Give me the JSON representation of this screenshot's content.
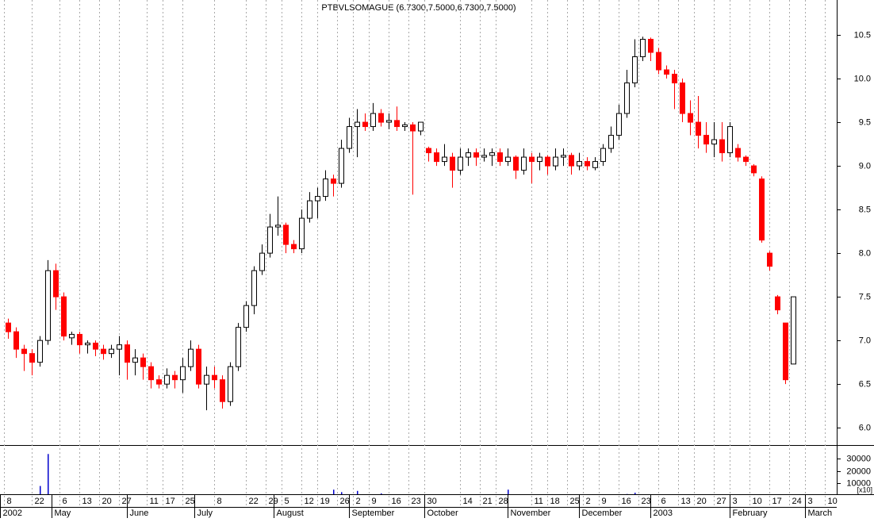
{
  "chart_data": {
    "type": "candlestick",
    "title": "PTBVLSOMAGUE (6.7300,7.5000,6.7300,7.5000)",
    "up_color": "#000000",
    "down_color": "#ff0000",
    "xlim": [
      0,
      211
    ],
    "ylim": [
      5.82,
      10.9
    ],
    "yticks": [
      {
        "value": 6,
        "label": "6.0"
      },
      6.5,
      {
        "value": 7,
        "label": "7.0"
      },
      7.5,
      {
        "value": 8,
        "label": "8.0"
      },
      8.5,
      {
        "value": 9,
        "label": "9.0"
      },
      9.5,
      {
        "value": 10,
        "label": "10.0"
      },
      10.5
    ],
    "xticks": [
      {
        "value": 1,
        "label": "8"
      },
      {
        "value": 8,
        "label": "22"
      },
      {
        "value": 15,
        "label": "6"
      },
      {
        "value": 20,
        "label": "13"
      },
      {
        "value": 25,
        "label": "20"
      },
      {
        "value": 30,
        "label": "27"
      },
      {
        "value": 37,
        "label": "11"
      },
      {
        "value": 41,
        "label": "17"
      },
      {
        "value": 46,
        "label": "25"
      },
      {
        "value": 54,
        "label": "8"
      },
      {
        "value": 62,
        "label": "22"
      },
      {
        "value": 67,
        "label": "29"
      },
      {
        "value": 71,
        "label": "5"
      },
      {
        "value": 76,
        "label": "12"
      },
      {
        "value": 80,
        "label": "19"
      },
      {
        "value": 85,
        "label": "26"
      },
      {
        "value": 89,
        "label": "2"
      },
      {
        "value": 93,
        "label": "9"
      },
      {
        "value": 98,
        "label": "16"
      },
      {
        "value": 103,
        "label": "23"
      },
      {
        "value": 107,
        "label": "30"
      },
      {
        "value": 116,
        "label": "14"
      },
      {
        "value": 121,
        "label": "21"
      },
      {
        "value": 125,
        "label": "28"
      },
      {
        "value": 134,
        "label": "11"
      },
      {
        "value": 138,
        "label": "18"
      },
      {
        "value": 143,
        "label": "25"
      },
      {
        "value": 147,
        "label": "2"
      },
      {
        "value": 151,
        "label": "9"
      },
      {
        "value": 156,
        "label": "16"
      },
      {
        "value": 161,
        "label": "23"
      },
      {
        "value": 166,
        "label": "6"
      },
      {
        "value": 171,
        "label": "13"
      },
      {
        "value": 175,
        "label": "20"
      },
      {
        "value": 180,
        "label": "27"
      },
      {
        "value": 184,
        "label": "3"
      },
      {
        "value": 189,
        "label": "10"
      },
      {
        "value": 194,
        "label": "17"
      },
      {
        "value": 199,
        "label": "24"
      },
      {
        "value": 203,
        "label": "3"
      },
      {
        "value": 208,
        "label": "10"
      }
    ],
    "months": [
      {
        "value": 0,
        "label": "2002"
      },
      {
        "value": 13,
        "label": "May"
      },
      {
        "value": 32,
        "label": "June"
      },
      {
        "value": 49,
        "label": "July"
      },
      {
        "value": 69,
        "label": "August"
      },
      {
        "value": 88,
        "label": "September"
      },
      {
        "value": 107,
        "label": "October"
      },
      {
        "value": 128,
        "label": "November"
      },
      {
        "value": 146,
        "label": "December"
      },
      {
        "value": 164,
        "label": "2003"
      },
      {
        "value": 184,
        "label": "February"
      },
      {
        "value": 203,
        "label": "March"
      }
    ],
    "x": [
      2,
      4,
      6,
      8,
      10,
      12,
      14,
      16,
      18,
      20,
      22,
      24,
      26,
      28,
      30,
      32,
      34,
      36,
      38,
      40,
      42,
      44,
      46,
      48,
      50,
      52,
      54,
      56,
      58,
      60,
      62,
      64,
      66,
      68,
      70,
      72,
      74,
      76,
      78,
      80,
      82,
      84,
      86,
      88,
      90,
      92,
      94,
      96,
      98,
      100,
      102,
      104,
      106,
      108,
      110,
      112,
      114,
      116,
      118,
      120,
      122,
      124,
      126,
      128,
      130,
      132,
      134,
      136,
      138,
      140,
      142,
      144,
      146,
      148,
      150,
      152,
      154,
      156,
      158,
      160,
      162,
      164,
      166,
      168,
      170,
      172,
      174,
      176,
      178,
      180,
      182,
      184,
      186,
      188,
      190,
      192,
      194,
      196,
      198,
      200
    ],
    "ohlc": [
      [
        7.2,
        7.25,
        7.02,
        7.1
      ],
      [
        7.1,
        7.15,
        6.8,
        6.9
      ],
      [
        6.9,
        6.95,
        6.65,
        6.85
      ],
      [
        6.85,
        6.9,
        6.6,
        6.75
      ],
      [
        6.75,
        7.05,
        6.7,
        7.0
      ],
      [
        7.0,
        7.92,
        6.95,
        7.8
      ],
      [
        7.8,
        7.88,
        7.35,
        7.5
      ],
      [
        7.5,
        7.55,
        7.0,
        7.05
      ],
      [
        7.03,
        7.1,
        6.95,
        7.07
      ],
      [
        7.07,
        7.1,
        6.85,
        6.95
      ],
      [
        6.95,
        7.0,
        6.85,
        6.97
      ],
      [
        6.97,
        7.0,
        6.82,
        6.9
      ],
      [
        6.9,
        6.95,
        6.78,
        6.85
      ],
      [
        6.85,
        6.95,
        6.8,
        6.9
      ],
      [
        6.9,
        7.05,
        6.6,
        6.95
      ],
      [
        6.95,
        7.0,
        6.55,
        6.75
      ],
      [
        6.75,
        6.9,
        6.6,
        6.8
      ],
      [
        6.8,
        6.85,
        6.55,
        6.7
      ],
      [
        6.7,
        6.75,
        6.45,
        6.55
      ],
      [
        6.55,
        6.6,
        6.45,
        6.5
      ],
      [
        6.5,
        6.68,
        6.45,
        6.6
      ],
      [
        6.6,
        6.65,
        6.45,
        6.55
      ],
      [
        6.55,
        6.8,
        6.4,
        6.7
      ],
      [
        6.7,
        7.0,
        6.65,
        6.9
      ],
      [
        6.9,
        6.95,
        6.45,
        6.5
      ],
      [
        6.5,
        6.7,
        6.2,
        6.6
      ],
      [
        6.6,
        6.7,
        6.45,
        6.55
      ],
      [
        6.55,
        6.6,
        6.22,
        6.3
      ],
      [
        6.3,
        6.75,
        6.25,
        6.7
      ],
      [
        6.7,
        7.2,
        6.65,
        7.15
      ],
      [
        7.15,
        7.45,
        7.1,
        7.4
      ],
      [
        7.4,
        7.85,
        7.3,
        7.8
      ],
      [
        7.8,
        8.1,
        7.75,
        8.0
      ],
      [
        8.0,
        8.45,
        7.95,
        8.3
      ],
      [
        8.3,
        8.65,
        8.2,
        8.32
      ],
      [
        8.32,
        8.35,
        8.0,
        8.1
      ],
      [
        8.1,
        8.15,
        8.0,
        8.05
      ],
      [
        8.05,
        8.5,
        8.0,
        8.4
      ],
      [
        8.4,
        8.7,
        8.35,
        8.6
      ],
      [
        8.6,
        8.75,
        8.4,
        8.65
      ],
      [
        8.65,
        8.95,
        8.6,
        8.85
      ],
      [
        8.85,
        8.9,
        8.65,
        8.8
      ],
      [
        8.8,
        9.3,
        8.75,
        9.2
      ],
      [
        9.2,
        9.55,
        9.15,
        9.45
      ],
      [
        9.45,
        9.65,
        9.1,
        9.5
      ],
      [
        9.5,
        9.6,
        9.4,
        9.45
      ],
      [
        9.45,
        9.72,
        9.4,
        9.6
      ],
      [
        9.6,
        9.65,
        9.45,
        9.5
      ],
      [
        9.5,
        9.6,
        9.42,
        9.52
      ],
      [
        9.52,
        9.68,
        9.4,
        9.45
      ],
      [
        9.45,
        9.5,
        9.4,
        9.47
      ],
      [
        9.47,
        9.5,
        8.67,
        9.4
      ],
      [
        9.4,
        9.5,
        9.35,
        9.5
      ],
      [
        9.2,
        9.22,
        9.05,
        9.15
      ],
      [
        9.15,
        9.2,
        9.0,
        9.05
      ],
      [
        9.05,
        9.25,
        9.0,
        9.1
      ],
      [
        9.1,
        9.15,
        8.75,
        8.95
      ],
      [
        8.95,
        9.2,
        8.9,
        9.1
      ],
      [
        9.1,
        9.2,
        9.0,
        9.15
      ],
      [
        9.15,
        9.2,
        9.0,
        9.1
      ],
      [
        9.1,
        9.2,
        9.05,
        9.12
      ],
      [
        9.12,
        9.2,
        9.0,
        9.15
      ],
      [
        9.15,
        9.2,
        9.0,
        9.05
      ],
      [
        9.05,
        9.2,
        9.0,
        9.1
      ],
      [
        9.1,
        9.12,
        8.85,
        8.95
      ],
      [
        8.95,
        9.2,
        8.9,
        9.1
      ],
      [
        9.1,
        9.15,
        8.8,
        9.05
      ],
      [
        9.05,
        9.15,
        8.95,
        9.1
      ],
      [
        9.1,
        9.12,
        8.9,
        9.0
      ],
      [
        9.0,
        9.2,
        8.95,
        9.1
      ],
      [
        9.1,
        9.2,
        9.0,
        9.12
      ],
      [
        9.12,
        9.15,
        8.9,
        9.0
      ],
      [
        9.0,
        9.15,
        8.95,
        9.05
      ],
      [
        9.05,
        9.1,
        8.95,
        9.0
      ],
      [
        8.98,
        9.1,
        8.95,
        9.05
      ],
      [
        9.05,
        9.25,
        9.0,
        9.2
      ],
      [
        9.2,
        9.45,
        9.15,
        9.35
      ],
      [
        9.35,
        9.7,
        9.3,
        9.6
      ],
      [
        9.6,
        10.1,
        9.55,
        9.95
      ],
      [
        9.95,
        10.45,
        9.9,
        10.25
      ],
      [
        10.25,
        10.48,
        10.2,
        10.45
      ],
      [
        10.45,
        10.47,
        10.2,
        10.3
      ],
      [
        10.3,
        10.35,
        10.05,
        10.1
      ],
      [
        10.1,
        10.15,
        10.0,
        10.05
      ],
      [
        10.05,
        10.1,
        9.65,
        9.95
      ],
      [
        9.95,
        10.0,
        9.5,
        9.6
      ],
      [
        9.6,
        9.75,
        9.35,
        9.5
      ],
      [
        9.5,
        9.8,
        9.2,
        9.35
      ],
      [
        9.35,
        9.5,
        9.15,
        9.25
      ],
      [
        9.25,
        9.5,
        9.1,
        9.3
      ],
      [
        9.3,
        9.5,
        9.05,
        9.15
      ],
      [
        9.15,
        9.5,
        9.1,
        9.45
      ],
      [
        9.2,
        9.25,
        9.05,
        9.1
      ],
      [
        9.1,
        9.12,
        9.0,
        9.05
      ],
      [
        9.0,
        9.02,
        8.88,
        8.92
      ],
      [
        8.85,
        8.88,
        8.12,
        8.15
      ],
      [
        8.0,
        8.02,
        7.8,
        7.85
      ],
      [
        7.5,
        7.52,
        7.3,
        7.35
      ],
      [
        7.2,
        7.2,
        6.5,
        6.55
      ],
      [
        6.73,
        7.5,
        6.73,
        7.5
      ]
    ],
    "volume": {
      "color": "#0000cc",
      "label": "[x10]",
      "ylim": [
        0,
        38700
      ],
      "yticks": [
        10000,
        20000,
        30000
      ],
      "values": [
        0,
        0,
        0,
        0,
        8000,
        34000,
        0,
        0,
        0,
        0,
        0,
        0,
        0,
        0,
        0,
        0,
        0,
        0,
        0,
        0,
        0,
        0,
        0,
        0,
        0,
        0,
        0,
        0,
        600,
        0,
        900,
        0,
        0,
        800,
        700,
        0,
        0,
        0,
        0,
        0,
        0,
        5000,
        3000,
        0,
        4000,
        0,
        0,
        2000,
        0,
        0,
        0,
        0,
        0,
        0,
        0,
        0,
        0,
        0,
        0,
        0,
        0,
        0,
        0,
        5000,
        0,
        0,
        0,
        0,
        0,
        0,
        0,
        0,
        0,
        0,
        0,
        0,
        0,
        900,
        1500,
        2500,
        800,
        0,
        0,
        0,
        0,
        0,
        0,
        0,
        0,
        0,
        0,
        0,
        0,
        0,
        0,
        1200,
        0,
        0,
        0,
        0
      ]
    }
  }
}
